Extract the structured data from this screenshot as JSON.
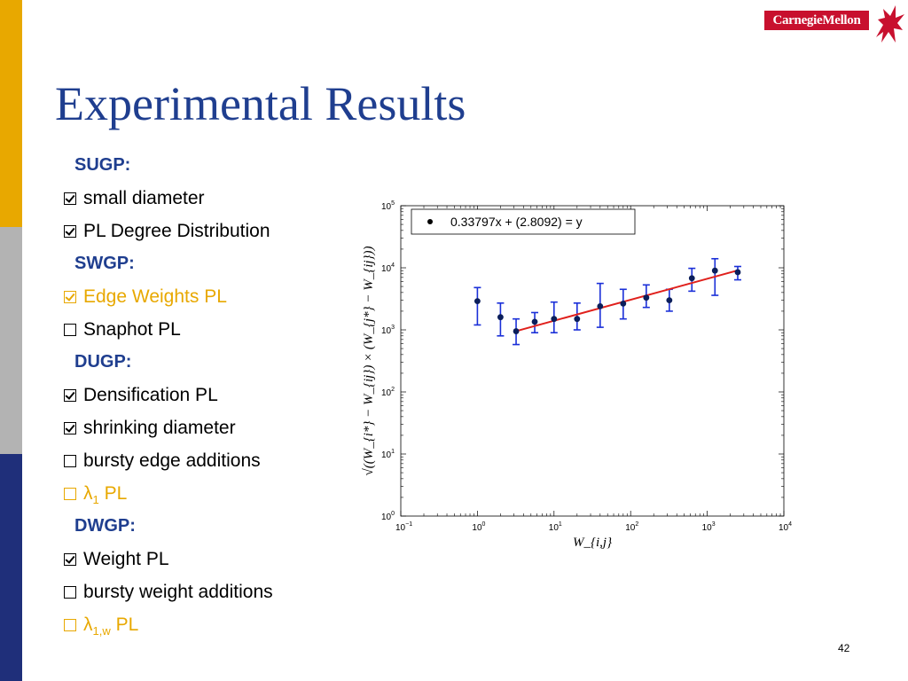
{
  "slide": {
    "title": "Experimental Results",
    "logo_text": "CarnegieMellon",
    "page_number": "42",
    "band_colors": [
      "#E8A800",
      "#B3B3B3",
      "#1F2F7A"
    ]
  },
  "list": [
    {
      "type": "header",
      "text": "SUGP:"
    },
    {
      "type": "item",
      "checked": true,
      "text": "small diameter",
      "color": "black"
    },
    {
      "type": "item",
      "checked": true,
      "text": "PL Degree Distribution",
      "color": "black"
    },
    {
      "type": "header",
      "text": "SWGP:"
    },
    {
      "type": "item",
      "checked": true,
      "text": "Edge Weights PL",
      "color": "orange"
    },
    {
      "type": "item",
      "checked": false,
      "text": "Snaphot PL",
      "color": "black"
    },
    {
      "type": "header",
      "text": "DUGP:"
    },
    {
      "type": "item",
      "checked": true,
      "text": "Densification PL",
      "color": "black"
    },
    {
      "type": "item",
      "checked": true,
      "text": "shrinking diameter",
      "color": "black"
    },
    {
      "type": "item",
      "checked": false,
      "text": "bursty edge additions",
      "color": "black"
    },
    {
      "type": "item",
      "checked": false,
      "symbol": "λ",
      "sub": "1",
      "text": "PL",
      "color": "orange"
    },
    {
      "type": "header",
      "text": "DWGP:"
    },
    {
      "type": "item",
      "checked": true,
      "text": "Weight PL",
      "color": "black"
    },
    {
      "type": "item",
      "checked": false,
      "text": "bursty weight additions",
      "color": "black"
    },
    {
      "type": "item",
      "checked": false,
      "symbol": "λ",
      "sub": "1,w",
      "text": "PL",
      "color": "orange"
    }
  ],
  "chart_data": {
    "type": "scatter",
    "xscale": "log",
    "yscale": "log",
    "xlim": [
      0.1,
      10000
    ],
    "ylim": [
      1,
      100000
    ],
    "xticks": [
      {
        "base": "10",
        "exp": "−1"
      },
      {
        "base": "10",
        "exp": "0"
      },
      {
        "base": "10",
        "exp": "1"
      },
      {
        "base": "10",
        "exp": "2"
      },
      {
        "base": "10",
        "exp": "3"
      },
      {
        "base": "10",
        "exp": "4"
      }
    ],
    "yticks": [
      {
        "base": "10",
        "exp": "0"
      },
      {
        "base": "10",
        "exp": "1"
      },
      {
        "base": "10",
        "exp": "2"
      },
      {
        "base": "10",
        "exp": "3"
      },
      {
        "base": "10",
        "exp": "4"
      },
      {
        "base": "10",
        "exp": "5"
      }
    ],
    "xlabel": "W_{i,j}",
    "ylabel": "√((W_{i*} − W_{ij}) × (W_{j*} − W_{ij}))",
    "legend": {
      "text": "0.33797x + (2.8092) = y",
      "position": "top-left"
    },
    "points": [
      {
        "x": 1,
        "y": 2900,
        "ylo": 1200,
        "yhi": 4800
      },
      {
        "x": 2,
        "y": 1600,
        "ylo": 800,
        "yhi": 2700
      },
      {
        "x": 3.2,
        "y": 950,
        "ylo": 580,
        "yhi": 1500
      },
      {
        "x": 5.6,
        "y": 1350,
        "ylo": 900,
        "yhi": 1900
      },
      {
        "x": 10,
        "y": 1500,
        "ylo": 900,
        "yhi": 2800
      },
      {
        "x": 20,
        "y": 1500,
        "ylo": 1000,
        "yhi": 2700
      },
      {
        "x": 40,
        "y": 2400,
        "ylo": 1100,
        "yhi": 5600
      },
      {
        "x": 80,
        "y": 2650,
        "ylo": 1500,
        "yhi": 4500
      },
      {
        "x": 160,
        "y": 3300,
        "ylo": 2300,
        "yhi": 5300
      },
      {
        "x": 320,
        "y": 3000,
        "ylo": 2000,
        "yhi": 4500
      },
      {
        "x": 630,
        "y": 6800,
        "ylo": 4200,
        "yhi": 9800
      },
      {
        "x": 1260,
        "y": 9000,
        "ylo": 3600,
        "yhi": 14000
      },
      {
        "x": 2500,
        "y": 8500,
        "ylo": 6400,
        "yhi": 10500
      }
    ],
    "fit": {
      "slope": 0.33797,
      "intercept_log10": 2.8092,
      "x_range": [
        3.2,
        2500
      ]
    },
    "colors": {
      "points": "#0B1E5B",
      "errorbars": "#1A2FD8",
      "fit": "#E0201C"
    }
  }
}
